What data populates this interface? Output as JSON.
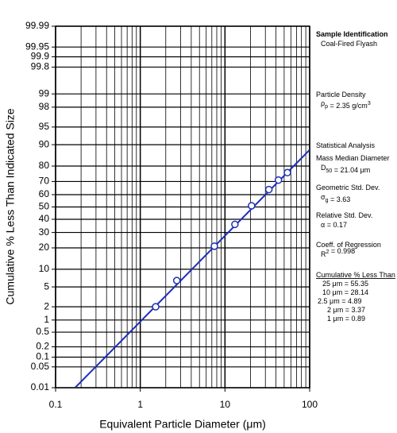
{
  "chart_data": {
    "type": "scatter",
    "x_label": "Equivalent Particle Diameter (μm)",
    "y_label": "Cumulative % Less Than Indicated Size",
    "xscale": "log",
    "yscale": "probability",
    "xlim": [
      0.1,
      100
    ],
    "ylim": [
      0.01,
      99.99
    ],
    "xticks": [
      0.1,
      1,
      10,
      100
    ],
    "x_minor_ticks": [
      0.2,
      0.3,
      0.4,
      0.5,
      0.6,
      0.7,
      0.8,
      0.9,
      2,
      3,
      4,
      5,
      6,
      7,
      8,
      9,
      20,
      30,
      40,
      50,
      60,
      70,
      80,
      90
    ],
    "yticks": [
      0.01,
      0.05,
      0.1,
      0.2,
      0.5,
      1,
      2,
      5,
      10,
      20,
      30,
      40,
      50,
      60,
      70,
      80,
      90,
      95,
      98,
      99,
      99.8,
      99.9,
      99.95,
      99.99
    ],
    "grid": true,
    "series": [
      {
        "color": "#1c2fb8",
        "marker": "circle",
        "x": [
          1.52,
          2.7,
          7.5,
          13.1,
          20.6,
          33,
          42.8,
          54.6
        ],
        "values": [
          2,
          6.5,
          21,
          36,
          51,
          64,
          71,
          76
        ]
      },
      {
        "color": "#1c2fb8",
        "marker": "none",
        "x": [
          0.17,
          100
        ],
        "values": [
          0.01,
          88
        ]
      }
    ]
  },
  "annotations": [
    {
      "bold": true,
      "parts": [
        "Sample Identification"
      ]
    },
    {
      "parts": [
        "Coal-Fired Flyash"
      ]
    },
    {
      "parts": [
        "Particle Density"
      ]
    },
    {
      "parts": [
        "ρ",
        {
          "sub": "p"
        },
        " = 2.35 g/cm",
        {
          "sup": "3"
        }
      ]
    },
    {
      "parts": [
        "Statistical Analysis"
      ]
    },
    {
      "parts": [
        "Mass Median Diameter"
      ]
    },
    {
      "parts": [
        "D",
        {
          "sub": "50"
        },
        " = 21.04 μm"
      ]
    },
    {
      "parts": [
        "Geometric Std. Dev."
      ]
    },
    {
      "parts": [
        "σ",
        {
          "sub": "g"
        },
        " = 3.63"
      ]
    },
    {
      "parts": [
        "Relative Std. Dev."
      ]
    },
    {
      "parts": [
        "α = 0.17"
      ]
    },
    {
      "parts": [
        "Coeff. of Regression"
      ]
    },
    {
      "parts": [
        "R",
        {
          "sup": "2"
        },
        " = 0.998"
      ]
    },
    {
      "underline": true,
      "parts": [
        "Cumulative % Less Than"
      ]
    },
    {
      "parts": [
        "25 μm = 55.35"
      ]
    },
    {
      "parts": [
        "10 μm = 28.14"
      ]
    },
    {
      "parts": [
        "2.5 μm =  4.89"
      ]
    },
    {
      "parts": [
        "2 μm =  3.37"
      ]
    },
    {
      "parts": [
        "1 μm =  0.89"
      ]
    }
  ]
}
